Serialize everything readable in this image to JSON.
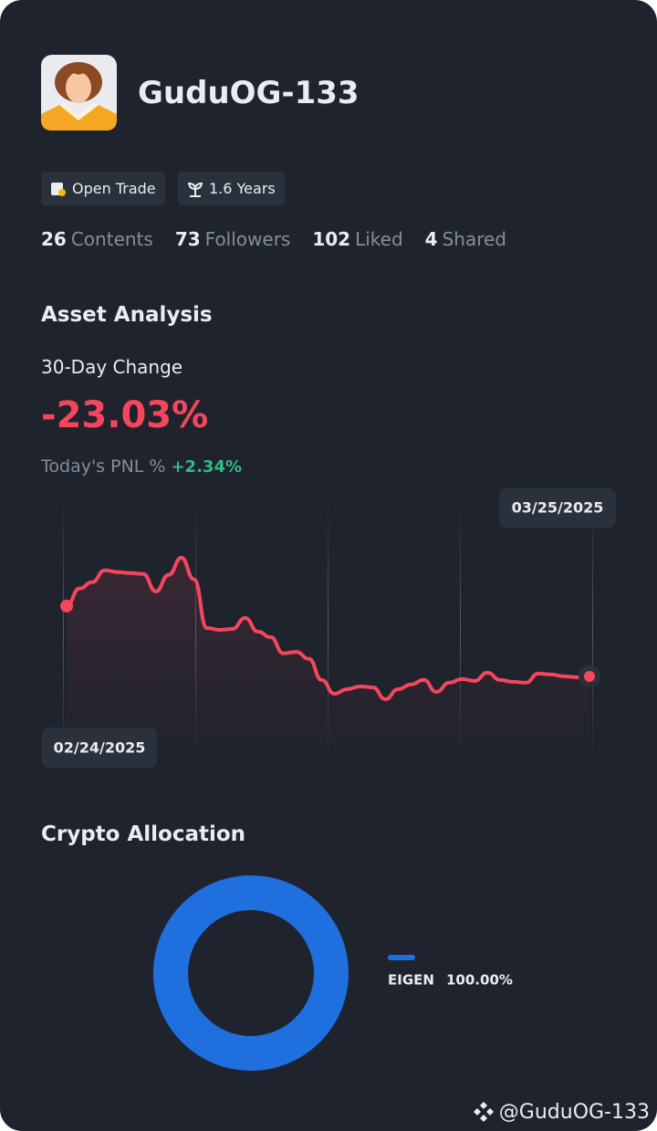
{
  "profile": {
    "name": "GuduOG-133",
    "badges": [
      "Open Trade",
      "1.6 Years"
    ],
    "stats": [
      {
        "count": 26,
        "label": "Contents"
      },
      {
        "count": 73,
        "label": "Followers"
      },
      {
        "count": 102,
        "label": "Liked"
      },
      {
        "count": 4,
        "label": "Shared"
      }
    ]
  },
  "asset_analysis": {
    "title": "Asset Analysis",
    "change_label": "30-Day Change",
    "change_value": "-23.03%",
    "pnl_label": "Today's PNL %",
    "pnl_value": "+2.34%",
    "chart": {
      "type": "line",
      "color": "#f6465d",
      "start_date": "02/24/2025",
      "end_date": "03/25/2025",
      "values": [
        0,
        5.7,
        7.8,
        11.7,
        11.1,
        10.8,
        10.5,
        4.8,
        10.2,
        15.8,
        8.7,
        -7.2,
        -7.8,
        -7.5,
        -3.9,
        -8.4,
        -10.2,
        -15.5,
        -15.0,
        -17.3,
        -24.2,
        -28.7,
        -27.2,
        -26.3,
        -26.6,
        -30.5,
        -27.2,
        -25.7,
        -24.2,
        -28.1,
        -25.1,
        -23.9,
        -24.5,
        -21.8,
        -24.2,
        -24.8,
        -25.1,
        -22.1,
        -22.4,
        -23.0,
        -23.3,
        -23.03
      ]
    }
  },
  "crypto_allocation": {
    "title": "Crypto Allocation",
    "chart": {
      "type": "pie",
      "categories": [
        "EIGEN"
      ],
      "values": [
        100
      ],
      "value_labels": [
        "100.00%"
      ],
      "colors": [
        "#1f6fde"
      ]
    }
  },
  "footer": {
    "handle": "@GuduOG-133"
  }
}
